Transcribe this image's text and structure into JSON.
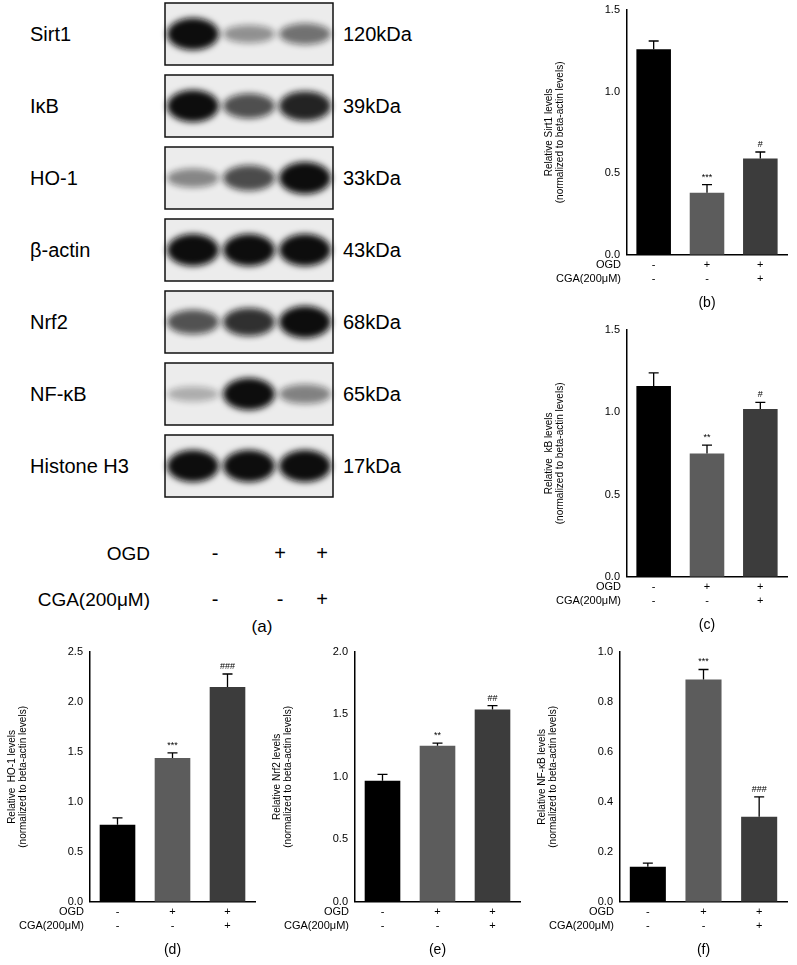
{
  "blot": {
    "rows": [
      {
        "label": "Sirt1",
        "size": "120kDa"
      },
      {
        "label": "IκB",
        "size": "39kDa"
      },
      {
        "label": "HO-1",
        "size": "33kDa"
      },
      {
        "label": "β-actin",
        "size": "43kDa"
      },
      {
        "label": "Nrf2",
        "size": "68kDa"
      },
      {
        "label": "NF-κB",
        "size": "65kDa"
      },
      {
        "label": "Histone H3",
        "size": "17kDa"
      }
    ],
    "conditions": [
      {
        "label": "OGD",
        "signs": [
          "-",
          "+",
          "+"
        ]
      },
      {
        "label": "CGA(200μM)",
        "signs": [
          "-",
          "-",
          "+"
        ]
      }
    ],
    "panel": "(a)"
  },
  "chart_data": [
    {
      "type": "bar",
      "panel": "(b)",
      "ylabel": [
        "Relative Sirt1 levels",
        "(normalized to beta-actin levels)"
      ],
      "categories": [
        [
          "-",
          "-"
        ],
        [
          "+",
          "-"
        ],
        [
          "+",
          "+"
        ]
      ],
      "category_rows": [
        "OGD",
        "CGA(200μM)"
      ],
      "values": [
        1.26,
        0.38,
        0.59
      ],
      "errors": [
        0.05,
        0.05,
        0.04
      ],
      "annotations": [
        null,
        "***",
        "#"
      ],
      "colors": [
        "#000000",
        "#5c5c5c",
        "#3c3c3c"
      ],
      "ylim": [
        0,
        1.5
      ],
      "yticks": [
        {
          "value": 0,
          "label": "0.0"
        },
        {
          "value": 0.5,
          "label": "0.5"
        },
        {
          "value": 1,
          "label": "1.0"
        },
        {
          "value": 1.5,
          "label": "1.5"
        }
      ],
      "grid": false
    },
    {
      "type": "bar",
      "panel": "(c)",
      "ylabel": [
        "Relative  kB levels",
        "(normalized to beta-actin levels)"
      ],
      "categories": [
        [
          "-",
          "-"
        ],
        [
          "+",
          "-"
        ],
        [
          "+",
          "+"
        ]
      ],
      "category_rows": [
        "OGD",
        "CGA(200μM)"
      ],
      "values": [
        1.16,
        0.75,
        1.02
      ],
      "errors": [
        0.08,
        0.05,
        0.04
      ],
      "annotations": [
        null,
        "**",
        "#"
      ],
      "colors": [
        "#000000",
        "#5c5c5c",
        "#3c3c3c"
      ],
      "ylim": [
        0,
        1.5
      ],
      "yticks": [
        {
          "value": 0,
          "label": "0.0"
        },
        {
          "value": 0.5,
          "label": "0.5"
        },
        {
          "value": 1,
          "label": "1.0"
        },
        {
          "value": 1.5,
          "label": "1.5"
        }
      ],
      "grid": false
    },
    {
      "type": "bar",
      "panel": "(d)",
      "ylabel": [
        "Relative  HO-1 levels",
        "(normalized to beta-actin levels)"
      ],
      "categories": [
        [
          "-",
          "-"
        ],
        [
          "+",
          "-"
        ],
        [
          "+",
          "+"
        ]
      ],
      "category_rows": [
        "OGD",
        "CGA(200μM)"
      ],
      "values": [
        0.77,
        1.44,
        2.15
      ],
      "errors": [
        0.07,
        0.05,
        0.13
      ],
      "annotations": [
        null,
        "***",
        "###"
      ],
      "colors": [
        "#000000",
        "#5c5c5c",
        "#3c3c3c"
      ],
      "ylim": [
        0,
        2.5
      ],
      "yticks": [
        {
          "value": 0,
          "label": "0.0"
        },
        {
          "value": 0.5,
          "label": "0.5"
        },
        {
          "value": 1,
          "label": "1.0"
        },
        {
          "value": 1.5,
          "label": "1.5"
        },
        {
          "value": 2,
          "label": "2.0"
        },
        {
          "value": 2.5,
          "label": "2.5"
        }
      ],
      "grid": false
    },
    {
      "type": "bar",
      "panel": "(e)",
      "ylabel": [
        "Relative Nrf2 levels",
        "(normalized to beta-actin levels)"
      ],
      "categories": [
        [
          "-",
          "-"
        ],
        [
          "+",
          "-"
        ],
        [
          "+",
          "+"
        ]
      ],
      "category_rows": [
        "OGD",
        "CGA(200μM)"
      ],
      "values": [
        0.97,
        1.25,
        1.54
      ],
      "errors": [
        0.05,
        0.02,
        0.03
      ],
      "annotations": [
        null,
        "**",
        "##"
      ],
      "colors": [
        "#000000",
        "#5c5c5c",
        "#3c3c3c"
      ],
      "ylim": [
        0,
        2
      ],
      "yticks": [
        {
          "value": 0,
          "label": "0.0"
        },
        {
          "value": 0.5,
          "label": "0.5"
        },
        {
          "value": 1,
          "label": "1.0"
        },
        {
          "value": 1.5,
          "label": "1.5"
        },
        {
          "value": 2,
          "label": "2.0"
        }
      ],
      "grid": false
    },
    {
      "type": "bar",
      "panel": "(f)",
      "ylabel": [
        "Relative NF-κB levels",
        "(normalized to beta-actin levels)"
      ],
      "categories": [
        [
          "-",
          "-"
        ],
        [
          "+",
          "-"
        ],
        [
          "+",
          "+"
        ]
      ],
      "category_rows": [
        "OGD",
        "CGA(200μM)"
      ],
      "values": [
        0.14,
        0.89,
        0.34
      ],
      "errors": [
        0.015,
        0.04,
        0.08
      ],
      "annotations": [
        null,
        "***",
        "###"
      ],
      "colors": [
        "#000000",
        "#5c5c5c",
        "#3c3c3c"
      ],
      "ylim": [
        0,
        1
      ],
      "yticks": [
        {
          "value": 0,
          "label": "0.0"
        },
        {
          "value": 0.2,
          "label": "0.2"
        },
        {
          "value": 0.4,
          "label": "0.4"
        },
        {
          "value": 0.6,
          "label": "0.6"
        },
        {
          "value": 0.8,
          "label": "0.8"
        },
        {
          "value": 1,
          "label": "1.0"
        }
      ],
      "grid": false
    }
  ]
}
